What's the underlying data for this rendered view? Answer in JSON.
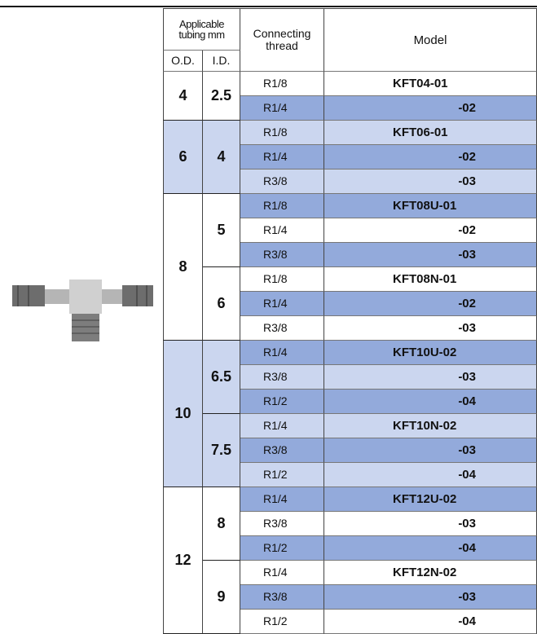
{
  "header": {
    "applicable": [
      "Applicable",
      "tubing mm"
    ],
    "od": "O.D.",
    "id": "I.D.",
    "thread": [
      "Connecting",
      "thread"
    ],
    "model": "Model"
  },
  "groups": [
    {
      "od": "4",
      "fill": "#ffffff",
      "ids": [
        {
          "id": "2.5",
          "rows": [
            {
              "thread": "R1/8",
              "model": "KFT04-01",
              "fill": "#ffffff"
            },
            {
              "thread": "R1/4",
              "model": "-02",
              "fill": "#93aadb"
            }
          ]
        }
      ]
    },
    {
      "od": "6",
      "fill": "#cbd6ef",
      "ids": [
        {
          "id": "4",
          "rows": [
            {
              "thread": "R1/8",
              "model": "KFT06-01",
              "fill": "#cbd6ef"
            },
            {
              "thread": "R1/4",
              "model": "-02",
              "fill": "#93aadb"
            },
            {
              "thread": "R3/8",
              "model": "-03",
              "fill": "#cbd6ef"
            }
          ]
        }
      ]
    },
    {
      "od": "8",
      "fill": "#ffffff",
      "ids": [
        {
          "id": "5",
          "rows": [
            {
              "thread": "R1/8",
              "model": "KFT08U-01",
              "fill": "#93aadb"
            },
            {
              "thread": "R1/4",
              "model": "-02",
              "fill": "#ffffff"
            },
            {
              "thread": "R3/8",
              "model": "-03",
              "fill": "#93aadb"
            }
          ]
        },
        {
          "id": "6",
          "rows": [
            {
              "thread": "R1/8",
              "model": "KFT08N-01",
              "fill": "#ffffff"
            },
            {
              "thread": "R1/4",
              "model": "-02",
              "fill": "#93aadb"
            },
            {
              "thread": "R3/8",
              "model": "-03",
              "fill": "#ffffff"
            }
          ]
        }
      ]
    },
    {
      "od": "10",
      "fill": "#cbd6ef",
      "ids": [
        {
          "id": "6.5",
          "rows": [
            {
              "thread": "R1/4",
              "model": "KFT10U-02",
              "fill": "#93aadb"
            },
            {
              "thread": "R3/8",
              "model": "-03",
              "fill": "#cbd6ef"
            },
            {
              "thread": "R1/2",
              "model": "-04",
              "fill": "#93aadb"
            }
          ]
        },
        {
          "id": "7.5",
          "rows": [
            {
              "thread": "R1/4",
              "model": "KFT10N-02",
              "fill": "#cbd6ef"
            },
            {
              "thread": "R3/8",
              "model": "-03",
              "fill": "#93aadb"
            },
            {
              "thread": "R1/2",
              "model": "-04",
              "fill": "#cbd6ef"
            }
          ]
        }
      ]
    },
    {
      "od": "12",
      "fill": "#ffffff",
      "ids": [
        {
          "id": "8",
          "rows": [
            {
              "thread": "R1/4",
              "model": "KFT12U-02",
              "fill": "#93aadb"
            },
            {
              "thread": "R3/8",
              "model": "-03",
              "fill": "#ffffff"
            },
            {
              "thread": "R1/2",
              "model": "-04",
              "fill": "#93aadb"
            }
          ]
        },
        {
          "id": "9",
          "rows": [
            {
              "thread": "R1/4",
              "model": "KFT12N-02",
              "fill": "#ffffff"
            },
            {
              "thread": "R3/8",
              "model": "-03",
              "fill": "#93aadb"
            },
            {
              "thread": "R1/2",
              "model": "-04",
              "fill": "#ffffff"
            }
          ]
        }
      ]
    }
  ]
}
